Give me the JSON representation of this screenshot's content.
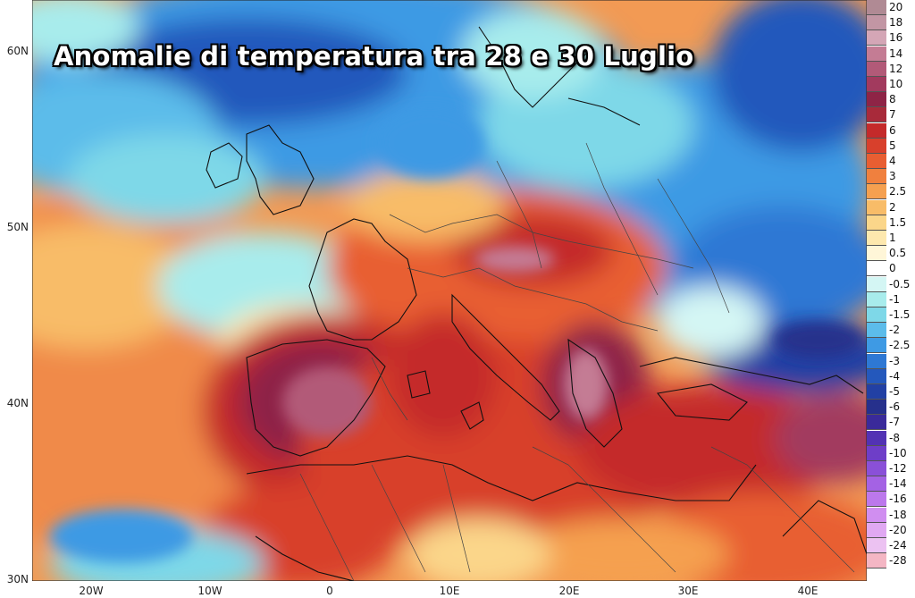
{
  "title": "Anomalie di temperatura tra 28 e 30 Luglio",
  "lat_labels": [
    "60N",
    "50N",
    "40N",
    "30N"
  ],
  "lon_labels": [
    "20W",
    "10W",
    "0",
    "10E",
    "20E",
    "30E",
    "40E"
  ],
  "legend": [
    {
      "value": "20",
      "color": "#b08a94"
    },
    {
      "value": "18",
      "color": "#c296a4"
    },
    {
      "value": "16",
      "color": "#d4a6b6"
    },
    {
      "value": "14",
      "color": "#c47c94"
    },
    {
      "value": "12",
      "color": "#b25a78"
    },
    {
      "value": "10",
      "color": "#a23a5e"
    },
    {
      "value": "8",
      "color": "#8e2446"
    },
    {
      "value": "7",
      "color": "#a82a3a"
    },
    {
      "value": "6",
      "color": "#c42a2a"
    },
    {
      "value": "5",
      "color": "#d8402c"
    },
    {
      "value": "4",
      "color": "#e85e32"
    },
    {
      "value": "3",
      "color": "#f0803e"
    },
    {
      "value": "2.5",
      "color": "#f5a050"
    },
    {
      "value": "2",
      "color": "#f8bc68"
    },
    {
      "value": "1.5",
      "color": "#fbd68a"
    },
    {
      "value": "1",
      "color": "#fde8ae"
    },
    {
      "value": "0.5",
      "color": "#fff6d8"
    },
    {
      "value": "0",
      "color": "#ffffff"
    },
    {
      "value": "-0.5",
      "color": "#d4f6f4"
    },
    {
      "value": "-1",
      "color": "#a8ecec"
    },
    {
      "value": "-1.5",
      "color": "#7ed8e8"
    },
    {
      "value": "-2",
      "color": "#5cbcea"
    },
    {
      "value": "-2.5",
      "color": "#3e9ae4"
    },
    {
      "value": "-3",
      "color": "#2e78d4"
    },
    {
      "value": "-4",
      "color": "#2458bc"
    },
    {
      "value": "-5",
      "color": "#2240a4"
    },
    {
      "value": "-6",
      "color": "#26308c"
    },
    {
      "value": "-7",
      "color": "#3a2a9a"
    },
    {
      "value": "-8",
      "color": "#5232b4"
    },
    {
      "value": "-10",
      "color": "#6e3ec8"
    },
    {
      "value": "-12",
      "color": "#8a50d8"
    },
    {
      "value": "-14",
      "color": "#a462e4"
    },
    {
      "value": "-16",
      "color": "#bc78ec"
    },
    {
      "value": "-18",
      "color": "#d08ef0"
    },
    {
      "value": "-20",
      "color": "#e0a8f2"
    },
    {
      "value": "-24",
      "color": "#ecc2f2"
    },
    {
      "value": "-28",
      "color": "#f4b6c4"
    }
  ],
  "colors": {
    "frame": "#222222",
    "coastline": "#111111",
    "border": "#444444"
  }
}
